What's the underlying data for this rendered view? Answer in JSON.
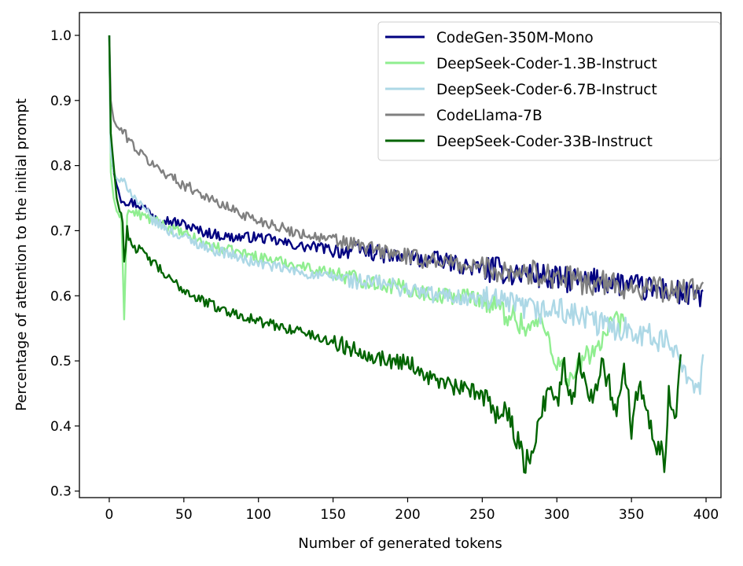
{
  "chart_data": {
    "type": "line",
    "title": "",
    "xlabel": "Number of generated tokens",
    "ylabel": "Percentage of attention to the initial prompt",
    "xlim": [
      -20,
      410
    ],
    "ylim": [
      0.29,
      1.035
    ],
    "xticks": [
      0,
      50,
      100,
      150,
      200,
      250,
      300,
      350,
      400
    ],
    "yticks": [
      0.3,
      0.4,
      0.5,
      0.6,
      0.7,
      0.8,
      0.9,
      1.0
    ],
    "xtick_labels": [
      "0",
      "50",
      "100",
      "150",
      "200",
      "250",
      "300",
      "350",
      "400"
    ],
    "ytick_labels": [
      "0.3",
      "0.4",
      "0.5",
      "0.6",
      "0.7",
      "0.8",
      "0.9",
      "1.0"
    ],
    "grid": false,
    "legend_position": "top-right",
    "series": [
      {
        "name": "CodeGen-350M-Mono",
        "color": "#000080",
        "x": [
          0,
          1,
          3,
          5,
          8,
          12,
          20,
          30,
          40,
          50,
          60,
          70,
          80,
          90,
          100,
          110,
          120,
          130,
          140,
          150,
          160,
          170,
          180,
          190,
          200,
          210,
          220,
          230,
          240,
          250,
          260,
          270,
          280,
          290,
          300,
          310,
          320,
          330,
          340,
          350,
          360,
          370,
          380,
          390,
          398
        ],
        "y": [
          1.0,
          0.82,
          0.79,
          0.77,
          0.75,
          0.745,
          0.74,
          0.725,
          0.715,
          0.71,
          0.7,
          0.695,
          0.69,
          0.69,
          0.69,
          0.685,
          0.68,
          0.675,
          0.675,
          0.67,
          0.67,
          0.67,
          0.665,
          0.66,
          0.66,
          0.655,
          0.655,
          0.65,
          0.645,
          0.64,
          0.64,
          0.635,
          0.635,
          0.63,
          0.625,
          0.625,
          0.62,
          0.625,
          0.62,
          0.615,
          0.61,
          0.61,
          0.605,
          0.6,
          0.6
        ]
      },
      {
        "name": "DeepSeek-Coder-1.3B-Instruct",
        "color": "#90ee90",
        "x": [
          0,
          1,
          3,
          5,
          8,
          10,
          12,
          20,
          30,
          40,
          50,
          60,
          70,
          80,
          90,
          100,
          110,
          120,
          130,
          140,
          150,
          160,
          170,
          180,
          190,
          200,
          210,
          220,
          230,
          240,
          250,
          260,
          270,
          280,
          290,
          300,
          310,
          320,
          330,
          340,
          345
        ],
        "y": [
          1.0,
          0.79,
          0.75,
          0.73,
          0.72,
          0.57,
          0.73,
          0.725,
          0.715,
          0.705,
          0.695,
          0.685,
          0.675,
          0.67,
          0.665,
          0.66,
          0.655,
          0.65,
          0.645,
          0.64,
          0.635,
          0.63,
          0.625,
          0.62,
          0.615,
          0.61,
          0.605,
          0.6,
          0.6,
          0.6,
          0.595,
          0.58,
          0.57,
          0.55,
          0.56,
          0.5,
          0.47,
          0.51,
          0.53,
          0.56,
          0.55
        ]
      },
      {
        "name": "DeepSeek-Coder-6.7B-Instruct",
        "color": "#add8e6",
        "x": [
          0,
          1,
          3,
          5,
          8,
          12,
          20,
          30,
          40,
          50,
          60,
          70,
          80,
          90,
          100,
          110,
          120,
          130,
          140,
          150,
          160,
          170,
          180,
          190,
          200,
          210,
          220,
          230,
          240,
          250,
          260,
          270,
          280,
          290,
          300,
          310,
          320,
          330,
          340,
          350,
          360,
          370,
          380,
          390,
          395,
          398
        ],
        "y": [
          1.0,
          0.82,
          0.79,
          0.78,
          0.775,
          0.77,
          0.74,
          0.715,
          0.7,
          0.69,
          0.68,
          0.67,
          0.665,
          0.655,
          0.65,
          0.645,
          0.64,
          0.635,
          0.63,
          0.63,
          0.625,
          0.62,
          0.62,
          0.615,
          0.61,
          0.605,
          0.6,
          0.6,
          0.595,
          0.595,
          0.59,
          0.585,
          0.58,
          0.575,
          0.58,
          0.57,
          0.565,
          0.555,
          0.55,
          0.55,
          0.54,
          0.53,
          0.52,
          0.47,
          0.45,
          0.5
        ]
      },
      {
        "name": "CodeLlama-7B",
        "color": "#808080",
        "x": [
          0,
          1,
          3,
          5,
          10,
          20,
          30,
          40,
          50,
          60,
          70,
          80,
          90,
          100,
          110,
          120,
          130,
          140,
          150,
          160,
          170,
          180,
          190,
          200,
          210,
          220,
          230,
          240,
          250,
          260,
          270,
          280,
          290,
          300,
          310,
          320,
          330,
          340,
          350,
          360,
          370,
          380,
          390,
          398
        ],
        "y": [
          1.0,
          0.9,
          0.87,
          0.86,
          0.85,
          0.82,
          0.8,
          0.785,
          0.77,
          0.76,
          0.745,
          0.735,
          0.725,
          0.715,
          0.71,
          0.7,
          0.695,
          0.69,
          0.685,
          0.68,
          0.675,
          0.67,
          0.665,
          0.66,
          0.655,
          0.655,
          0.65,
          0.645,
          0.645,
          0.64,
          0.64,
          0.635,
          0.635,
          0.63,
          0.625,
          0.62,
          0.62,
          0.615,
          0.615,
          0.61,
          0.61,
          0.605,
          0.61,
          0.61
        ]
      },
      {
        "name": "DeepSeek-Coder-33B-Instruct",
        "color": "#006400",
        "x": [
          0,
          1,
          3,
          5,
          7,
          9,
          10,
          12,
          15,
          20,
          30,
          40,
          50,
          60,
          70,
          80,
          90,
          100,
          110,
          120,
          130,
          140,
          150,
          160,
          170,
          180,
          190,
          200,
          210,
          220,
          230,
          240,
          250,
          255,
          260,
          265,
          270,
          275,
          278,
          280,
          285,
          290,
          295,
          300,
          305,
          310,
          315,
          320,
          325,
          330,
          335,
          340,
          345,
          350,
          355,
          360,
          365,
          370,
          372,
          375,
          380,
          383
        ],
        "y": [
          1.0,
          0.85,
          0.8,
          0.75,
          0.73,
          0.72,
          0.65,
          0.7,
          0.68,
          0.67,
          0.65,
          0.625,
          0.61,
          0.595,
          0.585,
          0.575,
          0.57,
          0.56,
          0.555,
          0.55,
          0.545,
          0.535,
          0.53,
          0.52,
          0.515,
          0.505,
          0.5,
          0.5,
          0.48,
          0.47,
          0.46,
          0.455,
          0.45,
          0.44,
          0.42,
          0.43,
          0.4,
          0.37,
          0.33,
          0.35,
          0.38,
          0.42,
          0.47,
          0.43,
          0.49,
          0.44,
          0.5,
          0.47,
          0.44,
          0.51,
          0.46,
          0.43,
          0.49,
          0.4,
          0.47,
          0.44,
          0.38,
          0.37,
          0.33,
          0.45,
          0.4,
          0.53
        ]
      }
    ]
  }
}
